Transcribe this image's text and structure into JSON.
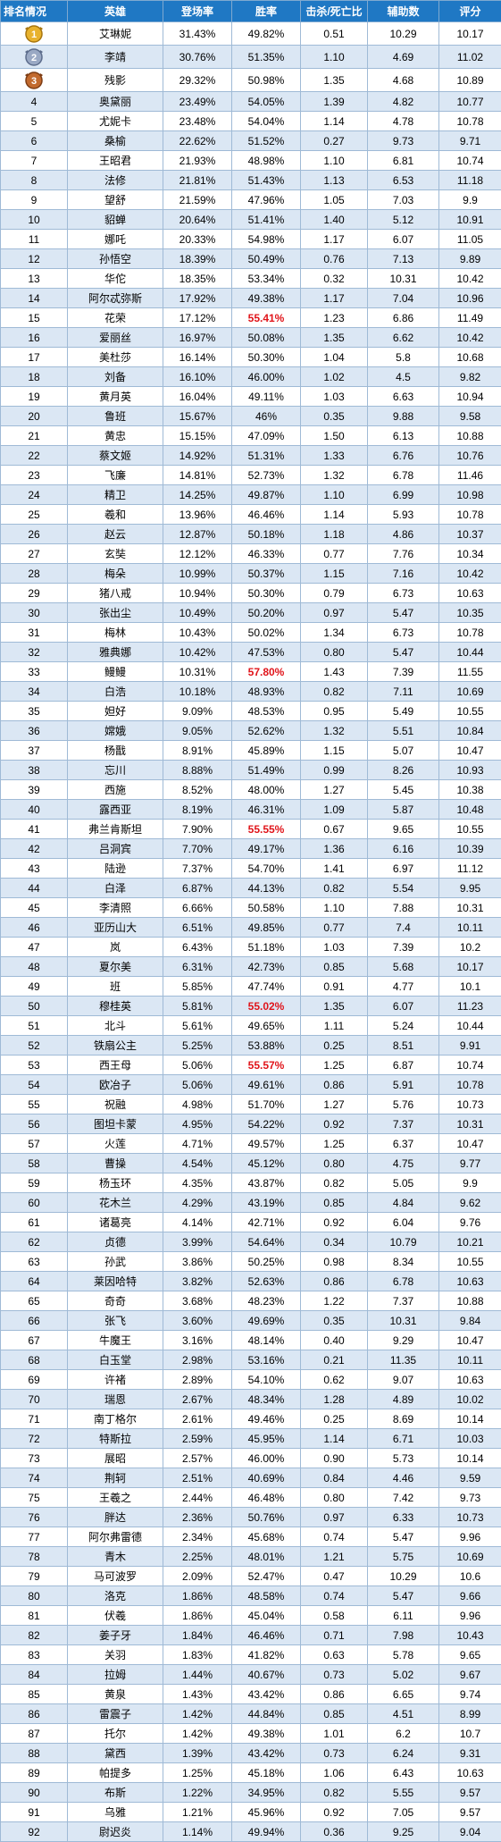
{
  "table": {
    "headers": [
      "排名情况",
      "英雄",
      "登场率",
      "胜率",
      "击杀/死亡比",
      "辅助数",
      "评分"
    ],
    "colors": {
      "header_bg": "#1f78c4",
      "stripe": "#dbe7f4",
      "highlight": "#e0141a"
    },
    "medal_icons": [
      "gold-medal-icon",
      "silver-medal-icon",
      "bronze-medal-icon"
    ],
    "rows": [
      {
        "rank": "1",
        "hero": "艾琳妮",
        "pick": "31.43%",
        "win": "49.82%",
        "kd": "0.51",
        "assist": "10.29",
        "score": "10.17",
        "hot": false
      },
      {
        "rank": "2",
        "hero": "李靖",
        "pick": "30.76%",
        "win": "51.35%",
        "kd": "1.10",
        "assist": "4.69",
        "score": "11.02",
        "hot": false
      },
      {
        "rank": "3",
        "hero": "残影",
        "pick": "29.32%",
        "win": "50.98%",
        "kd": "1.35",
        "assist": "4.68",
        "score": "10.89",
        "hot": false
      },
      {
        "rank": "4",
        "hero": "奥黛丽",
        "pick": "23.49%",
        "win": "54.05%",
        "kd": "1.39",
        "assist": "4.82",
        "score": "10.77",
        "hot": false
      },
      {
        "rank": "5",
        "hero": "尤妮卡",
        "pick": "23.48%",
        "win": "54.04%",
        "kd": "1.14",
        "assist": "4.78",
        "score": "10.78",
        "hot": false
      },
      {
        "rank": "6",
        "hero": "桑榆",
        "pick": "22.62%",
        "win": "51.52%",
        "kd": "0.27",
        "assist": "9.73",
        "score": "9.71",
        "hot": false
      },
      {
        "rank": "7",
        "hero": "王昭君",
        "pick": "21.93%",
        "win": "48.98%",
        "kd": "1.10",
        "assist": "6.81",
        "score": "10.74",
        "hot": false
      },
      {
        "rank": "8",
        "hero": "法修",
        "pick": "21.81%",
        "win": "51.43%",
        "kd": "1.13",
        "assist": "6.53",
        "score": "11.18",
        "hot": false
      },
      {
        "rank": "9",
        "hero": "望舒",
        "pick": "21.59%",
        "win": "47.96%",
        "kd": "1.05",
        "assist": "7.03",
        "score": "9.9",
        "hot": false
      },
      {
        "rank": "10",
        "hero": "貂蝉",
        "pick": "20.64%",
        "win": "51.41%",
        "kd": "1.40",
        "assist": "5.12",
        "score": "10.91",
        "hot": false
      },
      {
        "rank": "11",
        "hero": "娜吒",
        "pick": "20.33%",
        "win": "54.98%",
        "kd": "1.17",
        "assist": "6.07",
        "score": "11.05",
        "hot": false
      },
      {
        "rank": "12",
        "hero": "孙悟空",
        "pick": "18.39%",
        "win": "50.49%",
        "kd": "0.76",
        "assist": "7.13",
        "score": "9.89",
        "hot": false
      },
      {
        "rank": "13",
        "hero": "华佗",
        "pick": "18.35%",
        "win": "53.34%",
        "kd": "0.32",
        "assist": "10.31",
        "score": "10.42",
        "hot": false
      },
      {
        "rank": "14",
        "hero": "阿尔忒弥斯",
        "pick": "17.92%",
        "win": "49.38%",
        "kd": "1.17",
        "assist": "7.04",
        "score": "10.96",
        "hot": false
      },
      {
        "rank": "15",
        "hero": "花荣",
        "pick": "17.12%",
        "win": "55.41%",
        "kd": "1.23",
        "assist": "6.86",
        "score": "11.49",
        "hot": true
      },
      {
        "rank": "16",
        "hero": "爱丽丝",
        "pick": "16.97%",
        "win": "50.08%",
        "kd": "1.35",
        "assist": "6.62",
        "score": "10.42",
        "hot": false
      },
      {
        "rank": "17",
        "hero": "美杜莎",
        "pick": "16.14%",
        "win": "50.30%",
        "kd": "1.04",
        "assist": "5.8",
        "score": "10.68",
        "hot": false
      },
      {
        "rank": "18",
        "hero": "刘备",
        "pick": "16.10%",
        "win": "46.00%",
        "kd": "1.02",
        "assist": "4.5",
        "score": "9.82",
        "hot": false
      },
      {
        "rank": "19",
        "hero": "黄月英",
        "pick": "16.04%",
        "win": "49.11%",
        "kd": "1.03",
        "assist": "6.63",
        "score": "10.94",
        "hot": false
      },
      {
        "rank": "20",
        "hero": "鲁班",
        "pick": "15.67%",
        "win": "46%",
        "kd": "0.35",
        "assist": "9.88",
        "score": "9.58",
        "hot": false
      },
      {
        "rank": "21",
        "hero": "黄忠",
        "pick": "15.15%",
        "win": "47.09%",
        "kd": "1.50",
        "assist": "6.13",
        "score": "10.88",
        "hot": false
      },
      {
        "rank": "22",
        "hero": "蔡文姬",
        "pick": "14.92%",
        "win": "51.31%",
        "kd": "1.33",
        "assist": "6.76",
        "score": "10.76",
        "hot": false
      },
      {
        "rank": "23",
        "hero": "飞廉",
        "pick": "14.81%",
        "win": "52.73%",
        "kd": "1.32",
        "assist": "6.78",
        "score": "11.46",
        "hot": false
      },
      {
        "rank": "24",
        "hero": "精卫",
        "pick": "14.25%",
        "win": "49.87%",
        "kd": "1.10",
        "assist": "6.99",
        "score": "10.98",
        "hot": false
      },
      {
        "rank": "25",
        "hero": "羲和",
        "pick": "13.96%",
        "win": "46.46%",
        "kd": "1.14",
        "assist": "5.93",
        "score": "10.78",
        "hot": false
      },
      {
        "rank": "26",
        "hero": "赵云",
        "pick": "12.87%",
        "win": "50.18%",
        "kd": "1.18",
        "assist": "4.86",
        "score": "10.37",
        "hot": false
      },
      {
        "rank": "27",
        "hero": "玄奘",
        "pick": "12.12%",
        "win": "46.33%",
        "kd": "0.77",
        "assist": "7.76",
        "score": "10.34",
        "hot": false
      },
      {
        "rank": "28",
        "hero": "梅朵",
        "pick": "10.99%",
        "win": "50.37%",
        "kd": "1.15",
        "assist": "7.16",
        "score": "10.42",
        "hot": false
      },
      {
        "rank": "29",
        "hero": "猪八戒",
        "pick": "10.94%",
        "win": "50.30%",
        "kd": "0.79",
        "assist": "6.73",
        "score": "10.63",
        "hot": false
      },
      {
        "rank": "30",
        "hero": "张出尘",
        "pick": "10.49%",
        "win": "50.20%",
        "kd": "0.97",
        "assist": "5.47",
        "score": "10.35",
        "hot": false
      },
      {
        "rank": "31",
        "hero": "梅林",
        "pick": "10.43%",
        "win": "50.02%",
        "kd": "1.34",
        "assist": "6.73",
        "score": "10.78",
        "hot": false
      },
      {
        "rank": "32",
        "hero": "雅典娜",
        "pick": "10.42%",
        "win": "47.53%",
        "kd": "0.80",
        "assist": "5.47",
        "score": "10.44",
        "hot": false
      },
      {
        "rank": "33",
        "hero": "鳗鳗",
        "pick": "10.31%",
        "win": "57.80%",
        "kd": "1.43",
        "assist": "7.39",
        "score": "11.55",
        "hot": true
      },
      {
        "rank": "34",
        "hero": "白浩",
        "pick": "10.18%",
        "win": "48.93%",
        "kd": "0.82",
        "assist": "7.11",
        "score": "10.69",
        "hot": false
      },
      {
        "rank": "35",
        "hero": "妲好",
        "pick": "9.09%",
        "win": "48.53%",
        "kd": "0.95",
        "assist": "5.49",
        "score": "10.55",
        "hot": false
      },
      {
        "rank": "36",
        "hero": "嫦娥",
        "pick": "9.05%",
        "win": "52.62%",
        "kd": "1.32",
        "assist": "5.51",
        "score": "10.84",
        "hot": false
      },
      {
        "rank": "37",
        "hero": "杨戬",
        "pick": "8.91%",
        "win": "45.89%",
        "kd": "1.15",
        "assist": "5.07",
        "score": "10.47",
        "hot": false
      },
      {
        "rank": "38",
        "hero": "忘川",
        "pick": "8.88%",
        "win": "51.49%",
        "kd": "0.99",
        "assist": "8.26",
        "score": "10.93",
        "hot": false
      },
      {
        "rank": "39",
        "hero": "西施",
        "pick": "8.52%",
        "win": "48.00%",
        "kd": "1.27",
        "assist": "5.45",
        "score": "10.38",
        "hot": false
      },
      {
        "rank": "40",
        "hero": "露西亚",
        "pick": "8.19%",
        "win": "46.31%",
        "kd": "1.09",
        "assist": "5.87",
        "score": "10.48",
        "hot": false
      },
      {
        "rank": "41",
        "hero": "弗兰肯斯坦",
        "pick": "7.90%",
        "win": "55.55%",
        "kd": "0.67",
        "assist": "9.65",
        "score": "10.55",
        "hot": true
      },
      {
        "rank": "42",
        "hero": "吕洞宾",
        "pick": "7.70%",
        "win": "49.17%",
        "kd": "1.36",
        "assist": "6.16",
        "score": "10.39",
        "hot": false
      },
      {
        "rank": "43",
        "hero": "陆逊",
        "pick": "7.37%",
        "win": "54.70%",
        "kd": "1.41",
        "assist": "6.97",
        "score": "11.12",
        "hot": false
      },
      {
        "rank": "44",
        "hero": "白泽",
        "pick": "6.87%",
        "win": "44.13%",
        "kd": "0.82",
        "assist": "5.54",
        "score": "9.95",
        "hot": false
      },
      {
        "rank": "45",
        "hero": "李清照",
        "pick": "6.66%",
        "win": "50.58%",
        "kd": "1.10",
        "assist": "7.88",
        "score": "10.31",
        "hot": false
      },
      {
        "rank": "46",
        "hero": "亚历山大",
        "pick": "6.51%",
        "win": "49.85%",
        "kd": "0.77",
        "assist": "7.4",
        "score": "10.11",
        "hot": false
      },
      {
        "rank": "47",
        "hero": "岚",
        "pick": "6.43%",
        "win": "51.18%",
        "kd": "1.03",
        "assist": "7.39",
        "score": "10.2",
        "hot": false
      },
      {
        "rank": "48",
        "hero": "夏尔美",
        "pick": "6.31%",
        "win": "42.73%",
        "kd": "0.85",
        "assist": "5.68",
        "score": "10.17",
        "hot": false
      },
      {
        "rank": "49",
        "hero": "班",
        "pick": "5.85%",
        "win": "47.74%",
        "kd": "0.91",
        "assist": "4.77",
        "score": "10.1",
        "hot": false
      },
      {
        "rank": "50",
        "hero": "穆桂英",
        "pick": "5.81%",
        "win": "55.02%",
        "kd": "1.35",
        "assist": "6.07",
        "score": "11.23",
        "hot": true
      },
      {
        "rank": "51",
        "hero": "北斗",
        "pick": "5.61%",
        "win": "49.65%",
        "kd": "1.11",
        "assist": "5.24",
        "score": "10.44",
        "hot": false
      },
      {
        "rank": "52",
        "hero": "铁扇公主",
        "pick": "5.25%",
        "win": "53.88%",
        "kd": "0.25",
        "assist": "8.51",
        "score": "9.91",
        "hot": false
      },
      {
        "rank": "53",
        "hero": "西王母",
        "pick": "5.06%",
        "win": "55.57%",
        "kd": "1.25",
        "assist": "6.87",
        "score": "10.74",
        "hot": true
      },
      {
        "rank": "54",
        "hero": "欧冶子",
        "pick": "5.06%",
        "win": "49.61%",
        "kd": "0.86",
        "assist": "5.91",
        "score": "10.78",
        "hot": false
      },
      {
        "rank": "55",
        "hero": "祝融",
        "pick": "4.98%",
        "win": "51.70%",
        "kd": "1.27",
        "assist": "5.76",
        "score": "10.73",
        "hot": false
      },
      {
        "rank": "56",
        "hero": "图坦卡蒙",
        "pick": "4.95%",
        "win": "54.22%",
        "kd": "0.92",
        "assist": "7.37",
        "score": "10.31",
        "hot": false
      },
      {
        "rank": "57",
        "hero": "火莲",
        "pick": "4.71%",
        "win": "49.57%",
        "kd": "1.25",
        "assist": "6.37",
        "score": "10.47",
        "hot": false
      },
      {
        "rank": "58",
        "hero": "曹操",
        "pick": "4.54%",
        "win": "45.12%",
        "kd": "0.80",
        "assist": "4.75",
        "score": "9.77",
        "hot": false
      },
      {
        "rank": "59",
        "hero": "杨玉环",
        "pick": "4.35%",
        "win": "43.87%",
        "kd": "0.82",
        "assist": "5.05",
        "score": "9.9",
        "hot": false
      },
      {
        "rank": "60",
        "hero": "花木兰",
        "pick": "4.29%",
        "win": "43.19%",
        "kd": "0.85",
        "assist": "4.84",
        "score": "9.62",
        "hot": false
      },
      {
        "rank": "61",
        "hero": "诸葛亮",
        "pick": "4.14%",
        "win": "42.71%",
        "kd": "0.92",
        "assist": "6.04",
        "score": "9.76",
        "hot": false
      },
      {
        "rank": "62",
        "hero": "贞德",
        "pick": "3.99%",
        "win": "54.64%",
        "kd": "0.34",
        "assist": "10.79",
        "score": "10.21",
        "hot": false
      },
      {
        "rank": "63",
        "hero": "孙武",
        "pick": "3.86%",
        "win": "50.25%",
        "kd": "0.98",
        "assist": "8.34",
        "score": "10.55",
        "hot": false
      },
      {
        "rank": "64",
        "hero": "莱因哈特",
        "pick": "3.82%",
        "win": "52.63%",
        "kd": "0.86",
        "assist": "6.78",
        "score": "10.63",
        "hot": false
      },
      {
        "rank": "65",
        "hero": "奇奇",
        "pick": "3.68%",
        "win": "48.23%",
        "kd": "1.22",
        "assist": "7.37",
        "score": "10.88",
        "hot": false
      },
      {
        "rank": "66",
        "hero": "张飞",
        "pick": "3.60%",
        "win": "49.69%",
        "kd": "0.35",
        "assist": "10.31",
        "score": "9.84",
        "hot": false
      },
      {
        "rank": "67",
        "hero": "牛魔王",
        "pick": "3.16%",
        "win": "48.14%",
        "kd": "0.40",
        "assist": "9.29",
        "score": "10.47",
        "hot": false
      },
      {
        "rank": "68",
        "hero": "白玉堂",
        "pick": "2.98%",
        "win": "53.16%",
        "kd": "0.21",
        "assist": "11.35",
        "score": "10.11",
        "hot": false
      },
      {
        "rank": "69",
        "hero": "许褚",
        "pick": "2.89%",
        "win": "54.10%",
        "kd": "0.62",
        "assist": "9.07",
        "score": "10.63",
        "hot": false
      },
      {
        "rank": "70",
        "hero": "瑞恩",
        "pick": "2.67%",
        "win": "48.34%",
        "kd": "1.28",
        "assist": "4.89",
        "score": "10.02",
        "hot": false
      },
      {
        "rank": "71",
        "hero": "南丁格尔",
        "pick": "2.61%",
        "win": "49.46%",
        "kd": "0.25",
        "assist": "8.69",
        "score": "10.14",
        "hot": false
      },
      {
        "rank": "72",
        "hero": "特斯拉",
        "pick": "2.59%",
        "win": "45.95%",
        "kd": "1.14",
        "assist": "6.71",
        "score": "10.03",
        "hot": false
      },
      {
        "rank": "73",
        "hero": "展昭",
        "pick": "2.57%",
        "win": "46.00%",
        "kd": "0.90",
        "assist": "5.73",
        "score": "10.14",
        "hot": false
      },
      {
        "rank": "74",
        "hero": "荆轲",
        "pick": "2.51%",
        "win": "40.69%",
        "kd": "0.84",
        "assist": "4.46",
        "score": "9.59",
        "hot": false
      },
      {
        "rank": "75",
        "hero": "王羲之",
        "pick": "2.44%",
        "win": "46.48%",
        "kd": "0.80",
        "assist": "7.42",
        "score": "9.73",
        "hot": false
      },
      {
        "rank": "76",
        "hero": "胖达",
        "pick": "2.36%",
        "win": "50.76%",
        "kd": "0.97",
        "assist": "6.33",
        "score": "10.73",
        "hot": false
      },
      {
        "rank": "77",
        "hero": "阿尔弗雷德",
        "pick": "2.34%",
        "win": "45.68%",
        "kd": "0.74",
        "assist": "5.47",
        "score": "9.96",
        "hot": false
      },
      {
        "rank": "78",
        "hero": "青木",
        "pick": "2.25%",
        "win": "48.01%",
        "kd": "1.21",
        "assist": "5.75",
        "score": "10.69",
        "hot": false
      },
      {
        "rank": "79",
        "hero": "马可波罗",
        "pick": "2.09%",
        "win": "52.47%",
        "kd": "0.47",
        "assist": "10.29",
        "score": "10.6",
        "hot": false
      },
      {
        "rank": "80",
        "hero": "洛克",
        "pick": "1.86%",
        "win": "48.58%",
        "kd": "0.74",
        "assist": "5.47",
        "score": "9.66",
        "hot": false
      },
      {
        "rank": "81",
        "hero": "伏羲",
        "pick": "1.86%",
        "win": "45.04%",
        "kd": "0.58",
        "assist": "6.11",
        "score": "9.96",
        "hot": false
      },
      {
        "rank": "82",
        "hero": "姜子牙",
        "pick": "1.84%",
        "win": "46.46%",
        "kd": "0.71",
        "assist": "7.98",
        "score": "10.43",
        "hot": false
      },
      {
        "rank": "83",
        "hero": "关羽",
        "pick": "1.83%",
        "win": "41.82%",
        "kd": "0.63",
        "assist": "5.78",
        "score": "9.65",
        "hot": false
      },
      {
        "rank": "84",
        "hero": "拉姆",
        "pick": "1.44%",
        "win": "40.67%",
        "kd": "0.73",
        "assist": "5.02",
        "score": "9.67",
        "hot": false
      },
      {
        "rank": "85",
        "hero": "黄泉",
        "pick": "1.43%",
        "win": "43.42%",
        "kd": "0.86",
        "assist": "6.65",
        "score": "9.74",
        "hot": false
      },
      {
        "rank": "86",
        "hero": "雷震子",
        "pick": "1.42%",
        "win": "44.84%",
        "kd": "0.85",
        "assist": "4.51",
        "score": "8.99",
        "hot": false
      },
      {
        "rank": "87",
        "hero": "托尔",
        "pick": "1.42%",
        "win": "49.38%",
        "kd": "1.01",
        "assist": "6.2",
        "score": "10.7",
        "hot": false
      },
      {
        "rank": "88",
        "hero": "黛西",
        "pick": "1.39%",
        "win": "43.42%",
        "kd": "0.73",
        "assist": "6.24",
        "score": "9.31",
        "hot": false
      },
      {
        "rank": "89",
        "hero": "帕提多",
        "pick": "1.25%",
        "win": "45.18%",
        "kd": "1.06",
        "assist": "6.43",
        "score": "10.63",
        "hot": false
      },
      {
        "rank": "90",
        "hero": "布斯",
        "pick": "1.22%",
        "win": "34.95%",
        "kd": "0.82",
        "assist": "5.55",
        "score": "9.57",
        "hot": false
      },
      {
        "rank": "91",
        "hero": "乌雅",
        "pick": "1.21%",
        "win": "45.96%",
        "kd": "0.92",
        "assist": "7.05",
        "score": "9.57",
        "hot": false
      },
      {
        "rank": "92",
        "hero": "尉迟炎",
        "pick": "1.14%",
        "win": "49.94%",
        "kd": "0.36",
        "assist": "9.25",
        "score": "9.04",
        "hot": false
      }
    ]
  }
}
